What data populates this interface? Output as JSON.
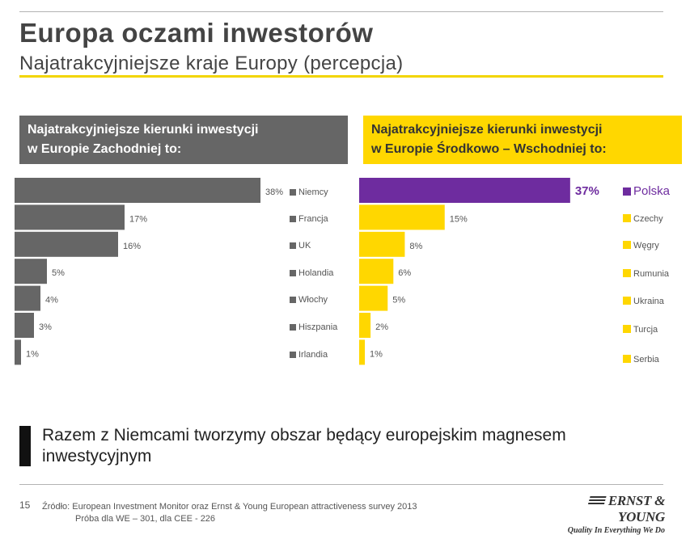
{
  "header": {
    "title": "Europa oczami inwestorów",
    "subtitle": "Najatrakcyjniejsze kraje Europy (percepcja)"
  },
  "panels": {
    "west_title_line1": "Najatrakcyjniejsze kierunki inwestycji",
    "west_title_line2": "w Europie Zachodniej to:",
    "east_title_line1": "Najatrakcyjniejsze kierunki inwestycji",
    "east_title_line2": "w Europie Środkowo – Wschodniej to:"
  },
  "colors": {
    "west_bar": "#666666",
    "east_bar": "#ffd700",
    "highlight": "#6e2c9f",
    "accent_rule": "#f2d500"
  },
  "chart_data": [
    {
      "type": "bar",
      "orientation": "horizontal",
      "categories": [
        "Niemcy",
        "Francja",
        "UK",
        "Holandia",
        "Włochy",
        "Hiszpania",
        "Irlandia"
      ],
      "values": [
        38,
        17,
        16,
        5,
        4,
        3,
        1
      ],
      "value_labels": [
        "38%",
        "17%",
        "16%",
        "5%",
        "4%",
        "3%",
        "1%"
      ],
      "unit": "%",
      "xlim": [
        0,
        40
      ],
      "grid": false,
      "legend": "right"
    },
    {
      "type": "bar",
      "orientation": "horizontal",
      "categories": [
        "Polska",
        "Czechy",
        "Węgry",
        "Rumunia",
        "Ukraina",
        "Turcja",
        "Serbia"
      ],
      "values": [
        37,
        15,
        8,
        6,
        5,
        2,
        1
      ],
      "value_labels": [
        "37%",
        "15%",
        "8%",
        "6%",
        "5%",
        "2%",
        "1%"
      ],
      "unit": "%",
      "xlim": [
        0,
        40
      ],
      "highlight_category": "Polska",
      "grid": false,
      "legend": "right"
    }
  ],
  "tagline": "Razem z Niemcami tworzymy obszar będący europejskim magnesem inwestycyjnym",
  "footer": {
    "page_number": "15",
    "source_line1": "Źródło: European Investment Monitor oraz Ernst & Young European attractiveness survey 2013",
    "source_line2": "Próba dla WE – 301, dla CEE - 226",
    "logo_name": "ERNST & YOUNG",
    "logo_tagline": "Quality In Everything We Do"
  }
}
